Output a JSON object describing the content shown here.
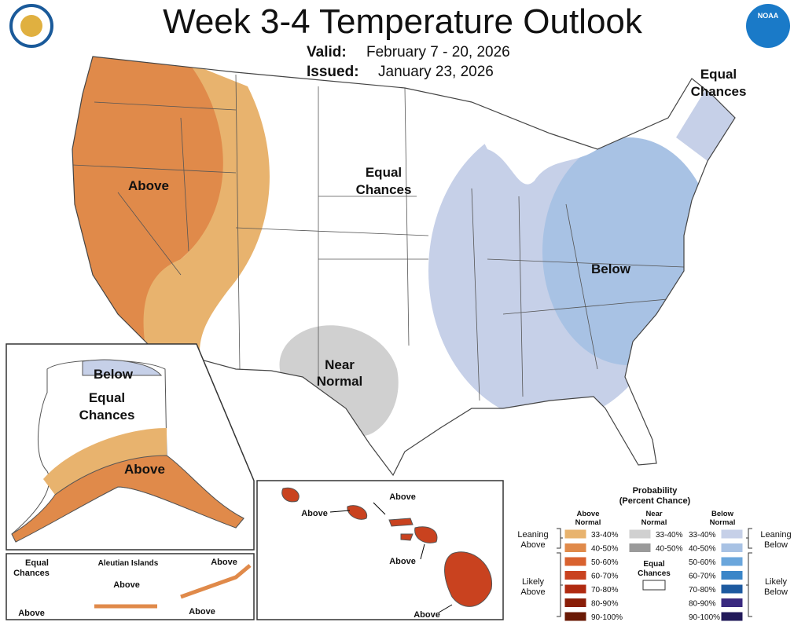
{
  "header": {
    "title": "Week 3-4 Temperature Outlook",
    "valid_label": "Valid:",
    "valid_dates": "February 7 - 20, 2026",
    "issued_label": "Issued:",
    "issued_date": "January 23, 2026",
    "logo": "NOAA"
  },
  "conus_labels": {
    "above": "Above",
    "equal_chances_central": [
      "Equal",
      "Chances"
    ],
    "equal_chances_northeast": [
      "Equal",
      "Chances"
    ],
    "below": "Below",
    "near_normal": [
      "Near",
      "Normal"
    ]
  },
  "alaska_labels": {
    "below": "Below",
    "equal_chances": [
      "Equal",
      "Chances"
    ],
    "above": "Above"
  },
  "aleutian_labels": {
    "title": "Aleutian Islands",
    "equal_chances": [
      "Equal",
      "Chances"
    ],
    "above": [
      "Above",
      "Above",
      "Above",
      "Above"
    ]
  },
  "hawaii_labels": [
    "Above",
    "Above",
    "Above",
    "Above"
  ],
  "legend": {
    "title": "Probability",
    "subtitle": "(Percent Chance)",
    "columns": [
      {
        "heading": [
          "Above",
          "Normal"
        ],
        "ranges": [
          {
            "label": "33-40%",
            "color": "#e8b36e"
          },
          {
            "label": "40-50%",
            "color": "#e08a4a"
          },
          {
            "label": "50-60%",
            "color": "#d9622f"
          },
          {
            "label": "60-70%",
            "color": "#c9421f"
          },
          {
            "label": "70-80%",
            "color": "#b02a10"
          },
          {
            "label": "80-90%",
            "color": "#8a1e08"
          },
          {
            "label": "90-100%",
            "color": "#6a1a06"
          }
        ]
      },
      {
        "heading": [
          "Near",
          "Normal"
        ],
        "ranges": [
          {
            "label": "33-40%",
            "color": "#d0d0d0"
          },
          {
            "label": "40-50%",
            "color": "#9a9a9a"
          }
        ]
      },
      {
        "heading": [
          "Below",
          "Normal"
        ],
        "ranges": [
          {
            "label": "33-40%",
            "color": "#c6d0e8"
          },
          {
            "label": "40-50%",
            "color": "#a8c2e4"
          },
          {
            "label": "50-60%",
            "color": "#6aa6dc"
          },
          {
            "label": "60-70%",
            "color": "#3b86c8"
          },
          {
            "label": "70-80%",
            "color": "#1d5aa0"
          },
          {
            "label": "80-90%",
            "color": "#3a2a80"
          },
          {
            "label": "90-100%",
            "color": "#221a5a"
          }
        ]
      }
    ],
    "equal_chances": [
      "Equal",
      "Chances"
    ],
    "brackets": {
      "leaning_above": [
        "Leaning",
        "Above"
      ],
      "likely_above": [
        "Likely",
        "Above"
      ],
      "leaning_below": [
        "Leaning",
        "Below"
      ],
      "likely_below": [
        "Likely",
        "Below"
      ]
    }
  }
}
